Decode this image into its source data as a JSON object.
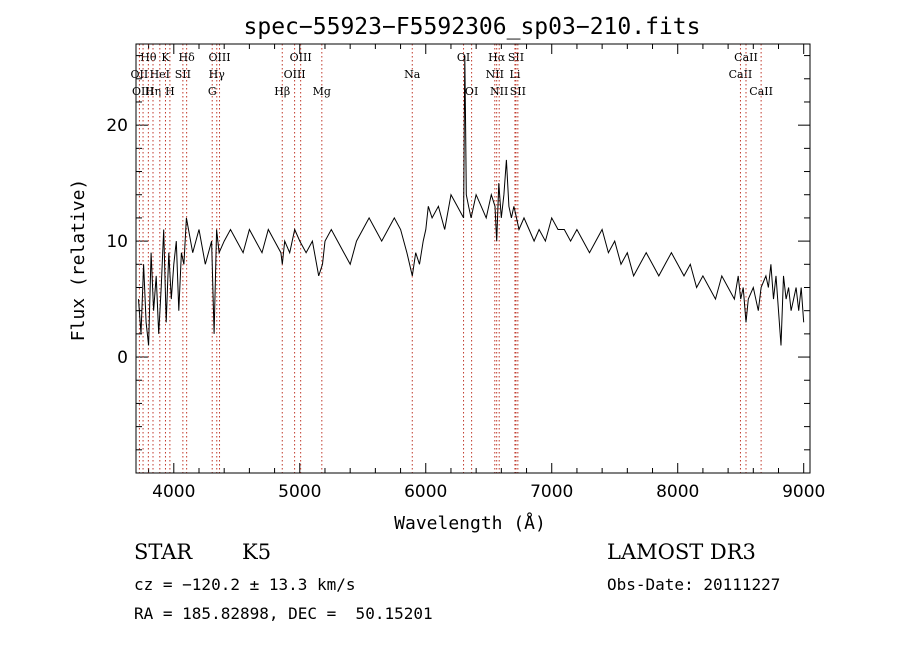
{
  "chart_data": {
    "type": "line",
    "title": "spec−55923−F5592306_sp03−210.fits",
    "xlabel": "Wavelength (Å)",
    "ylabel": "Flux (relative)",
    "xlim": [
      3700,
      9050
    ],
    "ylim": [
      -10,
      27
    ],
    "xticks": [
      4000,
      5000,
      6000,
      7000,
      8000,
      9000
    ],
    "yticks": [
      0,
      10,
      20
    ],
    "series": [
      {
        "name": "flux",
        "x": [
          3720,
          3740,
          3760,
          3780,
          3800,
          3820,
          3840,
          3860,
          3880,
          3900,
          3920,
          3940,
          3960,
          3980,
          4000,
          4020,
          4040,
          4060,
          4080,
          4100,
          4150,
          4200,
          4250,
          4300,
          4320,
          4340,
          4360,
          4400,
          4450,
          4500,
          4550,
          4600,
          4650,
          4700,
          4750,
          4800,
          4850,
          4861,
          4880,
          4920,
          4960,
          5000,
          5050,
          5100,
          5150,
          5180,
          5200,
          5250,
          5300,
          5350,
          5400,
          5450,
          5500,
          5550,
          5600,
          5650,
          5700,
          5750,
          5800,
          5850,
          5893,
          5920,
          5950,
          5980,
          6000,
          6020,
          6050,
          6100,
          6150,
          6200,
          6250,
          6300,
          6310,
          6316,
          6322,
          6340,
          6360,
          6400,
          6440,
          6480,
          6520,
          6550,
          6563,
          6580,
          6600,
          6620,
          6640,
          6660,
          6680,
          6700,
          6720,
          6740,
          6780,
          6820,
          6860,
          6900,
          6950,
          7000,
          7050,
          7100,
          7150,
          7200,
          7250,
          7300,
          7350,
          7400,
          7450,
          7500,
          7550,
          7600,
          7650,
          7700,
          7750,
          7800,
          7850,
          7900,
          7950,
          8000,
          8050,
          8100,
          8150,
          8200,
          8250,
          8300,
          8350,
          8400,
          8450,
          8480,
          8500,
          8520,
          8542,
          8560,
          8600,
          8640,
          8662,
          8700,
          8720,
          8740,
          8760,
          8780,
          8800,
          8820,
          8840,
          8860,
          8880,
          8900,
          8920,
          8940,
          8960,
          8980,
          9000
        ],
        "y": [
          5,
          2,
          8,
          3,
          1,
          9,
          4,
          7,
          2,
          6,
          11,
          3,
          9,
          5,
          8,
          10,
          4,
          9,
          8,
          12,
          9,
          11,
          8,
          10,
          2,
          11,
          9,
          10,
          11,
          10,
          9,
          11,
          10,
          9,
          11,
          10,
          9,
          8,
          10,
          9,
          11,
          10,
          9,
          10,
          7,
          8,
          10,
          11,
          10,
          9,
          8,
          10,
          11,
          12,
          11,
          10,
          11,
          12,
          11,
          9,
          7,
          9,
          8,
          10,
          11,
          13,
          12,
          13,
          11,
          14,
          13,
          12,
          26,
          20,
          14,
          13,
          12,
          14,
          13,
          12,
          14,
          13,
          10,
          15,
          12,
          14,
          17,
          13,
          12,
          13,
          12,
          11,
          12,
          11,
          10,
          11,
          10,
          12,
          11,
          11,
          10,
          11,
          10,
          9,
          10,
          11,
          9,
          10,
          8,
          9,
          7,
          8,
          9,
          8,
          7,
          8,
          9,
          8,
          7,
          8,
          6,
          7,
          6,
          5,
          7,
          6,
          5,
          7,
          5,
          6,
          3,
          5,
          6,
          4,
          6,
          7,
          6,
          8,
          5,
          7,
          4,
          1,
          7,
          5,
          6,
          4,
          5,
          6,
          4,
          6,
          3
        ]
      }
    ],
    "lines": [
      {
        "label": "Hθ",
        "x": 3798,
        "row": 0
      },
      {
        "label": "OII",
        "x": 3727,
        "row": 1
      },
      {
        "label": "OIII",
        "x": 3756,
        "row": 2
      },
      {
        "label": "Hη",
        "x": 3835,
        "row": 2
      },
      {
        "label": "HeI",
        "x": 3889,
        "row": 1
      },
      {
        "label": "K",
        "x": 3934,
        "row": 0
      },
      {
        "label": "H",
        "x": 3969,
        "row": 2
      },
      {
        "label": "SII",
        "x": 4072,
        "row": 1
      },
      {
        "label": "Hδ",
        "x": 4102,
        "row": 0
      },
      {
        "label": "G",
        "x": 4305,
        "row": 2
      },
      {
        "label": "Hγ",
        "x": 4341,
        "row": 1
      },
      {
        "label": "OIII",
        "x": 4363,
        "row": 0
      },
      {
        "label": "Hβ",
        "x": 4861,
        "row": 2
      },
      {
        "label": "OIII",
        "x": 4959,
        "row": 1
      },
      {
        "label": "OIII",
        "x": 5007,
        "row": 0
      },
      {
        "label": "Mg",
        "x": 5175,
        "row": 2
      },
      {
        "label": "Na",
        "x": 5893,
        "row": 1
      },
      {
        "label": "OI",
        "x": 6300,
        "row": 0
      },
      {
        "label": "OI",
        "x": 6364,
        "row": 2
      },
      {
        "label": "NII",
        "x": 6548,
        "row": 1
      },
      {
        "label": "Hα",
        "x": 6563,
        "row": 0
      },
      {
        "label": "NII",
        "x": 6583,
        "row": 2
      },
      {
        "label": "Li",
        "x": 6708,
        "row": 1
      },
      {
        "label": "SII",
        "x": 6716,
        "row": 0
      },
      {
        "label": "SII",
        "x": 6731,
        "row": 2
      },
      {
        "label": "CaII",
        "x": 8498,
        "row": 1
      },
      {
        "label": "CaII",
        "x": 8542,
        "row": 0
      },
      {
        "label": "CaII",
        "x": 8662,
        "row": 2
      }
    ]
  },
  "info": {
    "class_label": "STAR",
    "subclass": "K5",
    "survey": "LAMOST DR3",
    "cz": "cz = −120.2 ± 13.3 km/s",
    "obs_date": "Obs-Date: 20111227",
    "radec": "RA = 185.82898, DEC =  50.15201"
  }
}
